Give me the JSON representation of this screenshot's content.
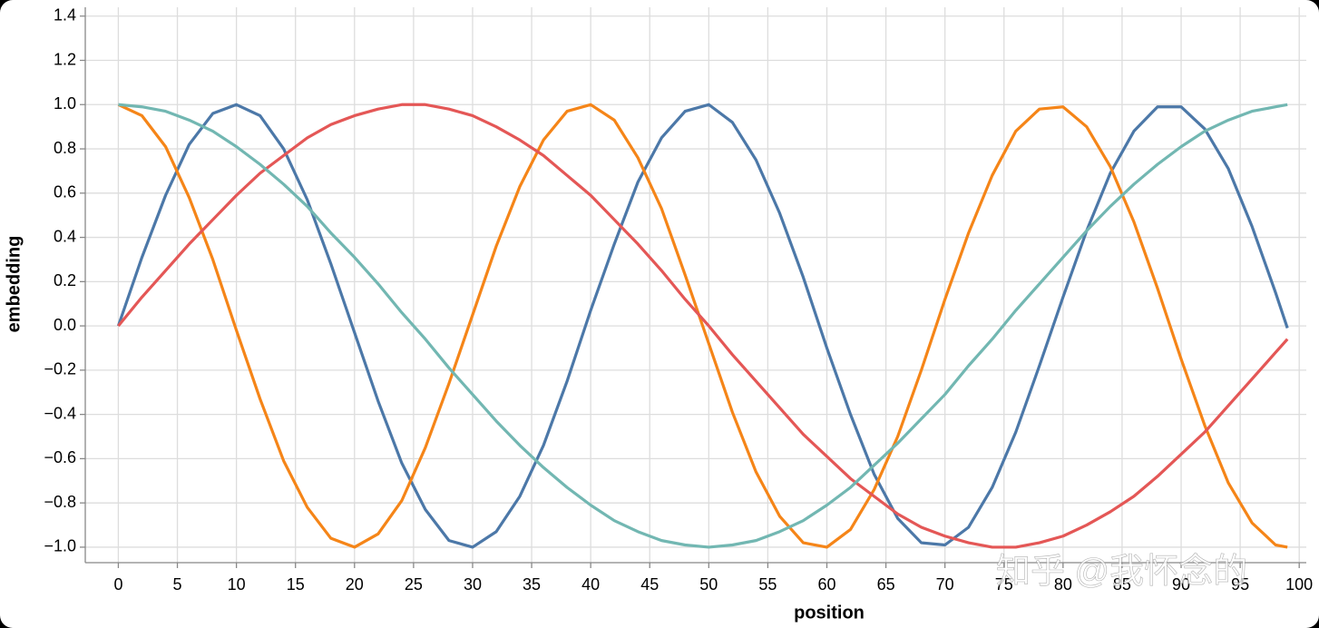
{
  "chart_data": {
    "type": "line",
    "x_label": "position",
    "y_label": "embedding",
    "watermark": "知乎 @我怀念的",
    "x": [
      0,
      2,
      4,
      6,
      8,
      10,
      12,
      14,
      16,
      18,
      20,
      22,
      24,
      26,
      28,
      30,
      32,
      34,
      36,
      38,
      40,
      42,
      44,
      46,
      48,
      50,
      52,
      54,
      56,
      58,
      60,
      62,
      64,
      66,
      68,
      70,
      72,
      74,
      76,
      78,
      80,
      82,
      84,
      86,
      88,
      90,
      92,
      94,
      96,
      98,
      99
    ],
    "series": [
      {
        "color": "#4c78a8",
        "values": [
          0,
          0.31,
          0.59,
          0.82,
          0.96,
          1.0,
          0.95,
          0.8,
          0.57,
          0.28,
          -0.03,
          -0.34,
          -0.62,
          -0.83,
          -0.97,
          -1.0,
          -0.93,
          -0.77,
          -0.54,
          -0.25,
          0.07,
          0.37,
          0.65,
          0.85,
          0.97,
          1.0,
          0.92,
          0.75,
          0.51,
          0.22,
          -0.1,
          -0.4,
          -0.67,
          -0.87,
          -0.98,
          -0.99,
          -0.91,
          -0.73,
          -0.48,
          -0.18,
          0.13,
          0.43,
          0.69,
          0.88,
          0.99,
          0.99,
          0.89,
          0.71,
          0.45,
          0.15,
          -0.01
        ]
      },
      {
        "color": "#f58518",
        "values": [
          1,
          0.95,
          0.81,
          0.58,
          0.3,
          -0.02,
          -0.33,
          -0.61,
          -0.82,
          -0.96,
          -1.0,
          -0.94,
          -0.79,
          -0.55,
          -0.26,
          0.05,
          0.36,
          0.63,
          0.84,
          0.97,
          1.0,
          0.93,
          0.76,
          0.53,
          0.23,
          -0.08,
          -0.39,
          -0.66,
          -0.86,
          -0.98,
          -1.0,
          -0.92,
          -0.74,
          -0.5,
          -0.2,
          0.12,
          0.42,
          0.68,
          0.88,
          0.98,
          0.99,
          0.9,
          0.72,
          0.47,
          0.17,
          -0.15,
          -0.45,
          -0.71,
          -0.89,
          -0.99,
          -1.0
        ]
      },
      {
        "color": "#e45756",
        "values": [
          0,
          0.13,
          0.25,
          0.37,
          0.48,
          0.59,
          0.69,
          0.77,
          0.85,
          0.91,
          0.95,
          0.98,
          1.0,
          1.0,
          0.98,
          0.95,
          0.9,
          0.84,
          0.77,
          0.68,
          0.59,
          0.48,
          0.37,
          0.25,
          0.12,
          0.0,
          -0.13,
          -0.25,
          -0.37,
          -0.49,
          -0.59,
          -0.69,
          -0.77,
          -0.85,
          -0.91,
          -0.95,
          -0.98,
          -1.0,
          -1.0,
          -0.98,
          -0.95,
          -0.9,
          -0.84,
          -0.77,
          -0.68,
          -0.58,
          -0.48,
          -0.36,
          -0.24,
          -0.12,
          -0.06
        ]
      },
      {
        "color": "#72b7b2",
        "values": [
          1,
          0.99,
          0.97,
          0.93,
          0.88,
          0.81,
          0.73,
          0.64,
          0.54,
          0.42,
          0.31,
          0.19,
          0.06,
          -0.06,
          -0.19,
          -0.31,
          -0.43,
          -0.54,
          -0.64,
          -0.73,
          -0.81,
          -0.88,
          -0.93,
          -0.97,
          -0.99,
          -1.0,
          -0.99,
          -0.97,
          -0.93,
          -0.88,
          -0.81,
          -0.73,
          -0.63,
          -0.53,
          -0.42,
          -0.31,
          -0.18,
          -0.06,
          0.07,
          0.19,
          0.31,
          0.43,
          0.54,
          0.64,
          0.73,
          0.81,
          0.88,
          0.93,
          0.97,
          0.99,
          1.0
        ]
      }
    ],
    "xlim": [
      -2.8,
      100.6
    ],
    "ylim": [
      -1.07,
      1.44
    ],
    "xticks": [
      0,
      5,
      10,
      15,
      20,
      25,
      30,
      35,
      40,
      45,
      50,
      55,
      60,
      65,
      70,
      75,
      80,
      85,
      90,
      95,
      100
    ],
    "yticks": [
      {
        "value": -1.0,
        "label": "−1.0"
      },
      {
        "value": -0.8,
        "label": "−0.8"
      },
      {
        "value": -0.6,
        "label": "−0.6"
      },
      {
        "value": -0.4,
        "label": "−0.4"
      },
      {
        "value": -0.2,
        "label": "−0.2"
      },
      {
        "value": 0,
        "label": "0.0"
      },
      {
        "value": 0.2,
        "label": "0.2"
      },
      {
        "value": 0.4,
        "label": "0.4"
      },
      {
        "value": 0.6,
        "label": "0.6"
      },
      {
        "value": 0.8,
        "label": "0.8"
      },
      {
        "value": 1.0,
        "label": "1.0"
      },
      {
        "value": 1.2,
        "label": "1.2"
      },
      {
        "value": 1.4,
        "label": "1.4"
      }
    ],
    "grid": true
  }
}
